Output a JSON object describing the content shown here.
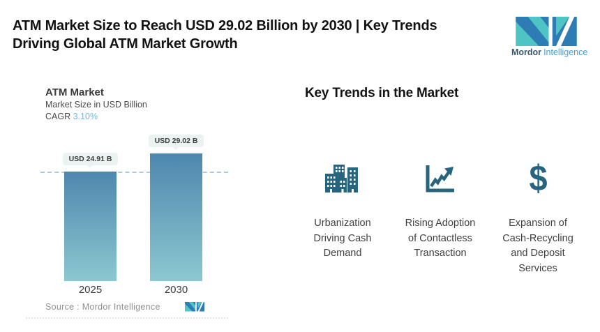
{
  "header": {
    "title": "ATM Market Size to Reach USD 29.02 Billion by 2030 | Key Trends\nDriving Global ATM Market Growth"
  },
  "brand": {
    "name_bold": "Mordor",
    "name_light": "Intelligence"
  },
  "chart": {
    "title": "ATM Market",
    "subtitle": "Market Size in USD Billion",
    "cagr_label": "CAGR",
    "cagr_value": "3.10%",
    "bars": [
      {
        "year": "2025",
        "value_label": "USD 24.91 B"
      },
      {
        "year": "2030",
        "value_label": "USD 29.02 B"
      }
    ],
    "source": "Source :  Mordor Intelligence"
  },
  "chart_data": {
    "type": "bar",
    "title": "ATM Market",
    "ylabel": "Market Size in USD Billion",
    "categories": [
      "2025",
      "2030"
    ],
    "values": [
      24.91,
      29.02
    ],
    "data_labels": [
      "USD 24.91 B",
      "USD 29.02 B"
    ],
    "cagr": "3.10%",
    "ylim": [
      0,
      29.02
    ],
    "grid": false,
    "legend": false,
    "annotations": [
      "horizontal dashed reference line at the 2025 bar top"
    ]
  },
  "trends": {
    "heading": "Key Trends in the Market",
    "dollar_glyph": "$",
    "items": [
      {
        "icon": "city-buildings-icon",
        "label": "Urbanization\nDriving Cash\nDemand"
      },
      {
        "icon": "rising-line-chart-icon",
        "label": "Rising Adoption\nof Contactless\nTransaction"
      },
      {
        "icon": "dollar-sign-icon",
        "label": "Expansion of\nCash-Recycling\nand Deposit\nServices"
      }
    ]
  },
  "colors": {
    "accent_teal": "#4fc4c4",
    "accent_blue": "#2e7cb4",
    "icon_blue": "#26647f",
    "bar_top": "#4d87ae",
    "bar_bottom": "#8bc8d0",
    "cagr_blue": "#76b6d4",
    "dash_blue": "#a5cfdf",
    "badge_bg": "#eaf3f1",
    "brand_text_dark": "#3a576b",
    "brand_text_light": "#4c9dc9"
  }
}
